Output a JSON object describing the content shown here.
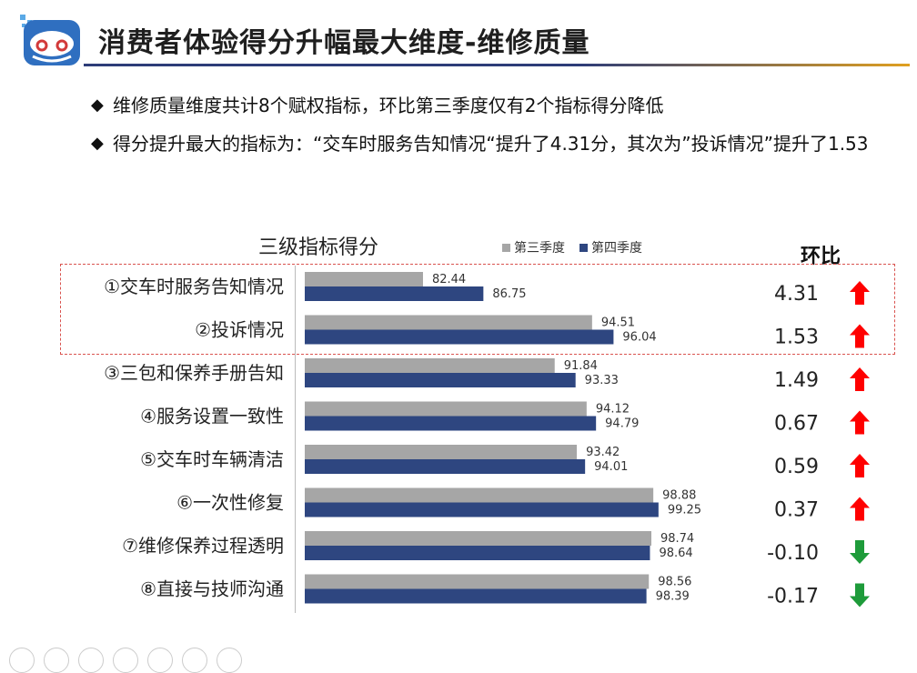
{
  "title": "消费者体验得分升幅最大维度-维修质量",
  "bullets": [
    "维修质量维度共计8个赋权指标，环比第三季度仅有2个指标得分降低",
    "得分提升最大的指标为：“交车时服务告知情况“提升了4.31分，其次为”投诉情况”提升了1.53"
  ],
  "colors": {
    "q3": "#a6a6a6",
    "q4": "#2e4680",
    "up": "#ff0000",
    "down": "#1e9b3a"
  },
  "chart_data": {
    "type": "bar",
    "title": "三级指标得分",
    "mom_header": "环比",
    "categories": [
      "①交车时服务告知情况",
      "②投诉情况",
      "③三包和保养手册告知",
      "④服务设置一致性",
      "⑤交车时车辆清洁",
      "⑥一次性修复",
      "⑦维修保养过程透明",
      "⑧直接与技师沟通"
    ],
    "series": [
      {
        "name": "第三季度",
        "values": [
          82.44,
          94.51,
          91.84,
          94.12,
          93.42,
          98.88,
          98.74,
          98.56
        ]
      },
      {
        "name": "第四季度",
        "values": [
          86.75,
          96.04,
          93.33,
          94.79,
          94.01,
          99.25,
          98.64,
          98.39
        ]
      }
    ],
    "mom": [
      "4.31",
      "1.53",
      "1.49",
      "0.67",
      "0.59",
      "0.37",
      "-0.10",
      "-0.17"
    ],
    "mom_direction": [
      "up",
      "up",
      "up",
      "up",
      "up",
      "up",
      "down",
      "down"
    ],
    "xlim": [
      74,
      100
    ],
    "orientation": "horizontal",
    "legend": "top"
  }
}
